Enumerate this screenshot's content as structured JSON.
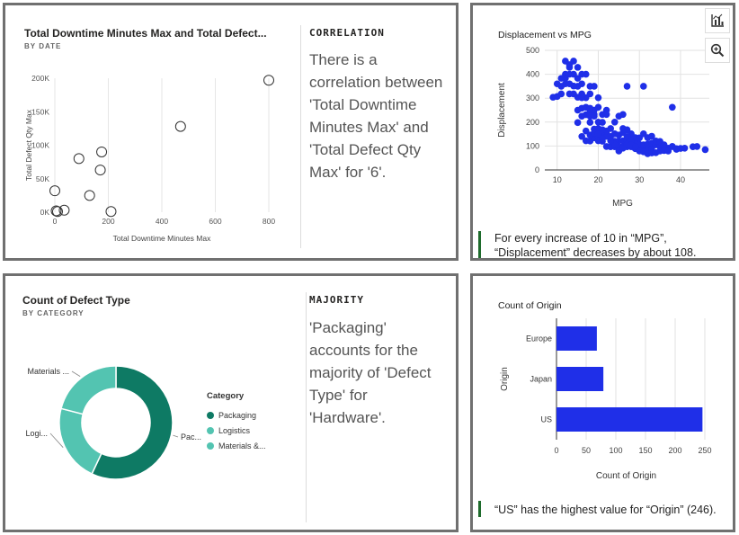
{
  "panel1": {
    "title": "Total Downtime Minutes Max and Total Defect...",
    "subtitle": "BY DATE",
    "insight_heading": "CORRELATION",
    "insight_lines": [
      "There is a",
      "correlation between",
      "'Total Downtime",
      "Minutes Max' and",
      "'Total Defect Qty",
      "Max' for '6'."
    ]
  },
  "panel2": {
    "caption_lines": [
      "For every increase of 10 in “MPG”,",
      "“Displacement” decreases by about 108."
    ],
    "toolbar": {
      "chart_button_icon": "bar-chart-icon",
      "zoom_button_icon": "zoom-in-icon"
    }
  },
  "panel3": {
    "title": "Count of Defect Type",
    "subtitle": "BY CATEGORY",
    "insight_heading": "MAJORITY",
    "insight_lines": [
      "'Packaging'",
      "accounts for the",
      "majority of 'Defect",
      "Type' for",
      "'Hardware'."
    ],
    "legend_title": "Category",
    "legend_items": [
      {
        "label": "Packaging",
        "color": "#0e7a64"
      },
      {
        "label": "Logistics",
        "color": "#53c4b1"
      },
      {
        "label": "Materials &...",
        "color": "#53c4b1"
      }
    ]
  },
  "panel4": {
    "caption": "“US” has the highest value for “Origin” (246)."
  },
  "chart_data": [
    {
      "type": "scatter",
      "title": "",
      "xlabel": "Total Downtime Minutes Max",
      "ylabel": "Total Defect Qty Max",
      "xlim": [
        0,
        800
      ],
      "ylim": [
        0,
        200000
      ],
      "x_ticks": [
        "0",
        "200",
        "400",
        "600",
        "800"
      ],
      "y_ticks": [
        "0K",
        "50K",
        "100K",
        "150K",
        "200K"
      ],
      "marker": "hollow-circle",
      "points": [
        [
          0,
          32000
        ],
        [
          5,
          2000
        ],
        [
          10,
          1000
        ],
        [
          35,
          3000
        ],
        [
          90,
          80000
        ],
        [
          130,
          25000
        ],
        [
          170,
          63000
        ],
        [
          175,
          90000
        ],
        [
          210,
          1000
        ],
        [
          470,
          128000
        ],
        [
          800,
          197000
        ]
      ]
    },
    {
      "type": "scatter",
      "title": "Displacement vs MPG",
      "xlabel": "MPG",
      "ylabel": "Displacement",
      "xlim": [
        7,
        47
      ],
      "ylim": [
        0,
        500
      ],
      "x_ticks": [
        10,
        20,
        30,
        40
      ],
      "y_ticks": [
        0,
        100,
        200,
        300,
        400,
        500
      ],
      "color": "#1f2fe8",
      "points": [
        [
          9,
          304
        ],
        [
          10,
          307
        ],
        [
          11,
          318
        ],
        [
          11,
          350
        ],
        [
          12,
          360
        ],
        [
          12,
          400
        ],
        [
          13,
          429
        ],
        [
          13,
          440
        ],
        [
          14,
          455
        ],
        [
          14,
          400
        ],
        [
          15,
          383
        ],
        [
          15,
          350
        ],
        [
          16,
          400
        ],
        [
          16,
          318
        ],
        [
          17,
          302
        ],
        [
          13,
          360
        ],
        [
          14,
          318
        ],
        [
          15,
          304
        ],
        [
          12,
          383
        ],
        [
          16,
          360
        ],
        [
          18,
          350
        ],
        [
          17,
          400
        ],
        [
          14,
          351
        ],
        [
          13,
          318
        ],
        [
          12,
          455
        ],
        [
          15,
          429
        ],
        [
          11,
          383
        ],
        [
          10,
          360
        ],
        [
          16,
          302
        ],
        [
          13,
          400
        ],
        [
          19,
          350
        ],
        [
          18,
          318
        ],
        [
          20,
          302
        ],
        [
          15,
          250
        ],
        [
          16,
          258
        ],
        [
          17,
          231
        ],
        [
          18,
          250
        ],
        [
          19,
          232
        ],
        [
          18,
          225
        ],
        [
          19,
          250
        ],
        [
          20,
          262
        ],
        [
          21,
          232
        ],
        [
          18,
          199
        ],
        [
          19,
          225
        ],
        [
          20,
          200
        ],
        [
          21,
          199
        ],
        [
          22,
          250
        ],
        [
          22,
          232
        ],
        [
          17,
          262
        ],
        [
          18,
          258
        ],
        [
          15,
          198
        ],
        [
          16,
          225
        ],
        [
          16,
          140
        ],
        [
          17,
          122
        ],
        [
          18,
          121
        ],
        [
          19,
          134
        ],
        [
          20,
          140
        ],
        [
          21,
          120
        ],
        [
          22,
          156
        ],
        [
          23,
          140
        ],
        [
          24,
          151
        ],
        [
          25,
          121
        ],
        [
          26,
          122
        ],
        [
          22,
          98
        ],
        [
          23,
          97
        ],
        [
          24,
          97
        ],
        [
          25,
          98
        ],
        [
          26,
          97
        ],
        [
          27,
          97
        ],
        [
          28,
          97
        ],
        [
          29,
          98
        ],
        [
          30,
          90
        ],
        [
          31,
          91
        ],
        [
          32,
          85
        ],
        [
          33,
          91
        ],
        [
          27,
          122
        ],
        [
          28,
          151
        ],
        [
          29,
          119
        ],
        [
          30,
          107
        ],
        [
          31,
          105
        ],
        [
          32,
          108
        ],
        [
          33,
          112
        ],
        [
          34,
          105
        ],
        [
          35,
          98
        ],
        [
          36,
          85
        ],
        [
          37,
          91
        ],
        [
          38,
          98
        ],
        [
          39,
          86
        ],
        [
          40,
          90
        ],
        [
          41,
          91
        ],
        [
          43,
          97
        ],
        [
          44,
          98
        ],
        [
          46,
          85
        ],
        [
          24,
          200
        ],
        [
          25,
          225
        ],
        [
          26,
          232
        ],
        [
          27,
          350
        ],
        [
          31,
          350
        ],
        [
          26,
          173
        ],
        [
          27,
          168
        ],
        [
          28,
          146
        ],
        [
          29,
          135
        ],
        [
          30,
          134
        ],
        [
          31,
          151
        ],
        [
          32,
          135
        ],
        [
          33,
          141
        ],
        [
          34,
          121
        ],
        [
          35,
          119
        ],
        [
          36,
          105
        ],
        [
          38,
          262
        ],
        [
          24,
          120
        ],
        [
          25,
          146
        ],
        [
          26,
          156
        ],
        [
          27,
          140
        ],
        [
          28,
          120
        ],
        [
          29,
          89
        ],
        [
          30,
          79
        ],
        [
          31,
          76
        ],
        [
          32,
          68
        ],
        [
          33,
          71
        ],
        [
          34,
          72
        ],
        [
          35,
          79
        ],
        [
          36,
          81
        ],
        [
          37,
          79
        ],
        [
          38,
          98
        ],
        [
          39,
          89
        ],
        [
          20,
          122
        ],
        [
          21,
          151
        ],
        [
          22,
          140
        ],
        [
          23,
          173
        ],
        [
          24,
          107
        ],
        [
          25,
          79
        ],
        [
          26,
          91
        ],
        [
          27,
          108
        ],
        [
          28,
          104
        ],
        [
          29,
          97
        ],
        [
          19,
          171
        ],
        [
          20,
          173
        ],
        [
          21,
          130
        ],
        [
          22,
          163
        ],
        [
          23,
          122
        ],
        [
          17,
          163
        ],
        [
          18,
          146
        ],
        [
          19,
          156
        ],
        [
          20,
          151
        ],
        [
          21,
          168
        ]
      ]
    },
    {
      "type": "pie",
      "title": "Count of Defect Type",
      "subtitle": "BY CATEGORY",
      "donut": true,
      "legend_title": "Category",
      "slice_labels": [
        "Pac...",
        "Logi...",
        "Materials ..."
      ],
      "slices": [
        {
          "label": "Packaging",
          "value": 57,
          "color": "#0e7a64"
        },
        {
          "label": "Logistics",
          "value": 22,
          "color": "#53c4b1"
        },
        {
          "label": "Materials &...",
          "value": 21,
          "color": "#53c4b1"
        }
      ]
    },
    {
      "type": "bar",
      "orientation": "horizontal",
      "title": "Count of Origin",
      "xlabel": "Count of Origin",
      "ylabel": "Origin",
      "categories": [
        "Europe",
        "Japan",
        "US"
      ],
      "values": [
        68,
        79,
        246
      ],
      "xlim": [
        0,
        250
      ],
      "x_ticks": [
        0,
        50,
        100,
        150,
        200,
        250
      ],
      "color": "#1f2fe8"
    }
  ]
}
